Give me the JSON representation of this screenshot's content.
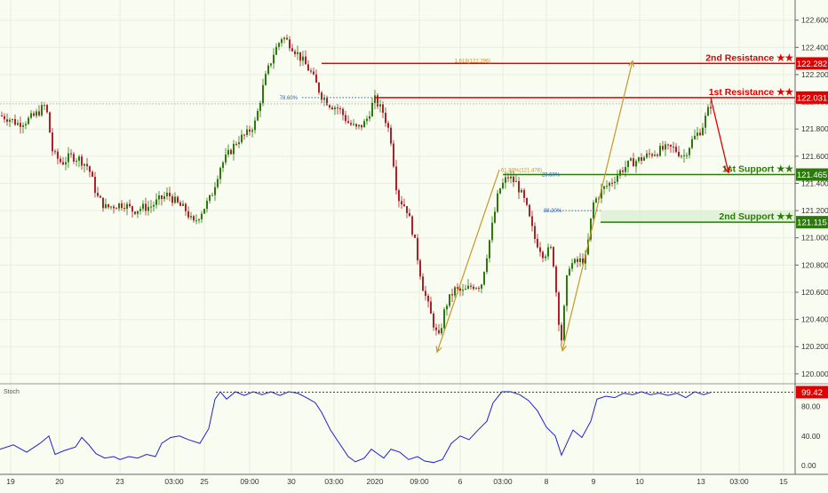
{
  "chart_data": {
    "type": "candlestick",
    "price_axis": {
      "ticks": [
        "122.600",
        "122.400",
        "122.200",
        "122.000",
        "121.800",
        "121.600",
        "121.400",
        "121.200",
        "121.000",
        "120.800",
        "120.600",
        "120.400",
        "120.200",
        "120.000"
      ],
      "range": [
        119.96,
        122.67
      ]
    },
    "x_axis": {
      "ticks": [
        "19",
        "20",
        "23",
        "03:00",
        "25",
        "09:00",
        "30",
        "03:00",
        "2020",
        "09:00",
        "6",
        "03:00",
        "8",
        "9",
        "10",
        "13",
        "03:00",
        "15"
      ]
    },
    "price_path": [
      [
        0,
        121.9
      ],
      [
        10,
        121.88
      ],
      [
        20,
        121.84
      ],
      [
        30,
        121.86
      ],
      [
        40,
        121.9
      ],
      [
        52,
        121.98
      ],
      [
        60,
        121.62
      ],
      [
        70,
        121.55
      ],
      [
        80,
        121.6
      ],
      [
        90,
        121.58
      ],
      [
        100,
        121.52
      ],
      [
        110,
        121.3
      ],
      [
        120,
        121.22
      ],
      [
        130,
        121.24
      ],
      [
        140,
        121.25
      ],
      [
        150,
        121.2
      ],
      [
        160,
        121.22
      ],
      [
        170,
        121.23
      ],
      [
        180,
        121.28
      ],
      [
        190,
        121.32
      ],
      [
        200,
        121.25
      ],
      [
        210,
        121.2
      ],
      [
        218,
        121.1
      ],
      [
        228,
        121.2
      ],
      [
        238,
        121.3
      ],
      [
        248,
        121.52
      ],
      [
        258,
        121.62
      ],
      [
        268,
        121.72
      ],
      [
        278,
        121.76
      ],
      [
        288,
        121.85
      ],
      [
        298,
        122.15
      ],
      [
        308,
        122.35
      ],
      [
        318,
        122.48
      ],
      [
        328,
        122.42
      ],
      [
        338,
        122.33
      ],
      [
        350,
        122.22
      ],
      [
        362,
        122.05
      ],
      [
        372,
        121.98
      ],
      [
        382,
        121.95
      ],
      [
        392,
        121.85
      ],
      [
        402,
        121.8
      ],
      [
        412,
        121.85
      ],
      [
        422,
        122.02
      ],
      [
        432,
        121.92
      ],
      [
        440,
        121.75
      ],
      [
        448,
        121.3
      ],
      [
        458,
        121.22
      ],
      [
        466,
        121.02
      ],
      [
        476,
        120.65
      ],
      [
        486,
        120.42
      ],
      [
        494,
        120.25
      ],
      [
        502,
        120.5
      ],
      [
        512,
        120.62
      ],
      [
        522,
        120.6
      ],
      [
        532,
        120.65
      ],
      [
        542,
        120.65
      ],
      [
        552,
        121.0
      ],
      [
        562,
        121.35
      ],
      [
        572,
        121.45
      ],
      [
        582,
        121.4
      ],
      [
        592,
        121.25
      ],
      [
        602,
        121.0
      ],
      [
        612,
        120.88
      ],
      [
        622,
        120.92
      ],
      [
        632,
        120.22
      ],
      [
        640,
        120.8
      ],
      [
        650,
        120.82
      ],
      [
        660,
        120.85
      ],
      [
        668,
        121.25
      ],
      [
        678,
        121.35
      ],
      [
        690,
        121.42
      ],
      [
        700,
        121.5
      ],
      [
        710,
        121.55
      ],
      [
        722,
        121.58
      ],
      [
        734,
        121.62
      ],
      [
        746,
        121.65
      ],
      [
        758,
        121.66
      ],
      [
        770,
        121.6
      ],
      [
        780,
        121.72
      ],
      [
        790,
        121.8
      ],
      [
        800,
        121.98
      ]
    ],
    "stochastic": {
      "label": "Stoch",
      "ticks": [
        "80.00",
        "40.00",
        "0.00"
      ],
      "last_value": "99.42",
      "path": [
        [
          0,
          22
        ],
        [
          15,
          28
        ],
        [
          30,
          18
        ],
        [
          45,
          30
        ],
        [
          55,
          40
        ],
        [
          62,
          15
        ],
        [
          72,
          20
        ],
        [
          85,
          25
        ],
        [
          92,
          38
        ],
        [
          100,
          28
        ],
        [
          108,
          16
        ],
        [
          118,
          10
        ],
        [
          128,
          12
        ],
        [
          135,
          8
        ],
        [
          145,
          12
        ],
        [
          155,
          10
        ],
        [
          165,
          15
        ],
        [
          175,
          12
        ],
        [
          182,
          30
        ],
        [
          192,
          38
        ],
        [
          202,
          40
        ],
        [
          212,
          35
        ],
        [
          225,
          30
        ],
        [
          235,
          50
        ],
        [
          242,
          90
        ],
        [
          248,
          100
        ],
        [
          255,
          90
        ],
        [
          265,
          100
        ],
        [
          275,
          95
        ],
        [
          285,
          100
        ],
        [
          295,
          96
        ],
        [
          305,
          100
        ],
        [
          315,
          95
        ],
        [
          325,
          100
        ],
        [
          335,
          98
        ],
        [
          345,
          92
        ],
        [
          355,
          85
        ],
        [
          362,
          72
        ],
        [
          372,
          48
        ],
        [
          382,
          30
        ],
        [
          392,
          12
        ],
        [
          400,
          5
        ],
        [
          410,
          10
        ],
        [
          418,
          22
        ],
        [
          425,
          16
        ],
        [
          432,
          10
        ],
        [
          440,
          22
        ],
        [
          450,
          18
        ],
        [
          460,
          8
        ],
        [
          470,
          12
        ],
        [
          478,
          6
        ],
        [
          488,
          4
        ],
        [
          498,
          8
        ],
        [
          508,
          30
        ],
        [
          518,
          40
        ],
        [
          528,
          35
        ],
        [
          538,
          48
        ],
        [
          548,
          60
        ],
        [
          555,
          85
        ],
        [
          565,
          100
        ],
        [
          575,
          100
        ],
        [
          585,
          96
        ],
        [
          595,
          88
        ],
        [
          605,
          74
        ],
        [
          615,
          52
        ],
        [
          625,
          40
        ],
        [
          632,
          14
        ],
        [
          638,
          30
        ],
        [
          645,
          48
        ],
        [
          655,
          38
        ],
        [
          665,
          60
        ],
        [
          672,
          90
        ],
        [
          682,
          94
        ],
        [
          692,
          92
        ],
        [
          702,
          98
        ],
        [
          712,
          96
        ],
        [
          722,
          100
        ],
        [
          732,
          96
        ],
        [
          742,
          98
        ],
        [
          752,
          95
        ],
        [
          762,
          98
        ],
        [
          772,
          92
        ],
        [
          782,
          100
        ],
        [
          792,
          96
        ],
        [
          800,
          99
        ]
      ]
    },
    "levels": [
      {
        "name": "2nd Resistance ★★",
        "value": "122.282",
        "color": "#e00000"
      },
      {
        "name": "1st Resistance ★★",
        "value": "122.031",
        "color": "#e00000"
      },
      {
        "name": "1st Support ★★",
        "value": "121.465",
        "color": "#2b7a0b"
      },
      {
        "name": "2nd Support ★★",
        "value": "121.115",
        "color": "#2b7a0b"
      }
    ],
    "fib_labels": {
      "ext": "1.618(122.296)",
      "r786": "78.60%",
      "r236": "23.60%",
      "r382": "38.20%",
      "r618": "61.80%(121.478)"
    },
    "colors": {
      "up": "#2b7a0b",
      "down": "#b0202a",
      "resistance": "#e00000",
      "support": "#2b7a0b",
      "stoch": "#2020d0",
      "projection": "#c8962a"
    }
  }
}
